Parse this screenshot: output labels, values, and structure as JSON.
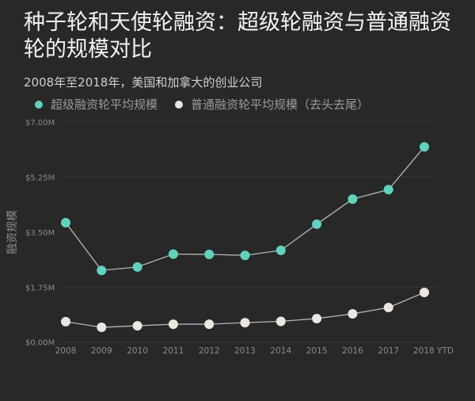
{
  "chart_data": {
    "type": "line",
    "title": "种子轮和天使轮融资：超级轮融资与普通融资轮的规模对比",
    "subtitle": "2008年至2018年，美国和加拿大的创业公司",
    "xlabel": "",
    "ylabel": "融资规模",
    "categories": [
      "2008",
      "2009",
      "2010",
      "2011",
      "2012",
      "2013",
      "2014",
      "2015",
      "2016",
      "2017",
      "2018 YTD"
    ],
    "yticks": [
      "$0.00M",
      "$1.75M",
      "$3.50M",
      "$5.25M",
      "$7.00M"
    ],
    "ylim": [
      0,
      7
    ],
    "unit": "$M",
    "grid": true,
    "legend_position": "top-left",
    "series": [
      {
        "name": "超级融资轮平均规模",
        "color": "#5fd3c0",
        "values": [
          3.8,
          2.28,
          2.39,
          2.8,
          2.79,
          2.76,
          2.92,
          3.75,
          4.55,
          4.85,
          6.21
        ]
      },
      {
        "name": "普通融资轮平均规模（去头去尾）",
        "color": "#ece6e0",
        "values": [
          0.65,
          0.47,
          0.52,
          0.57,
          0.57,
          0.62,
          0.66,
          0.75,
          0.9,
          1.1,
          1.58
        ]
      }
    ]
  },
  "colors": {
    "background": "#282828",
    "grid": "#353535",
    "line": "#b5b5b5",
    "axis_text": "#8a8a8a"
  }
}
